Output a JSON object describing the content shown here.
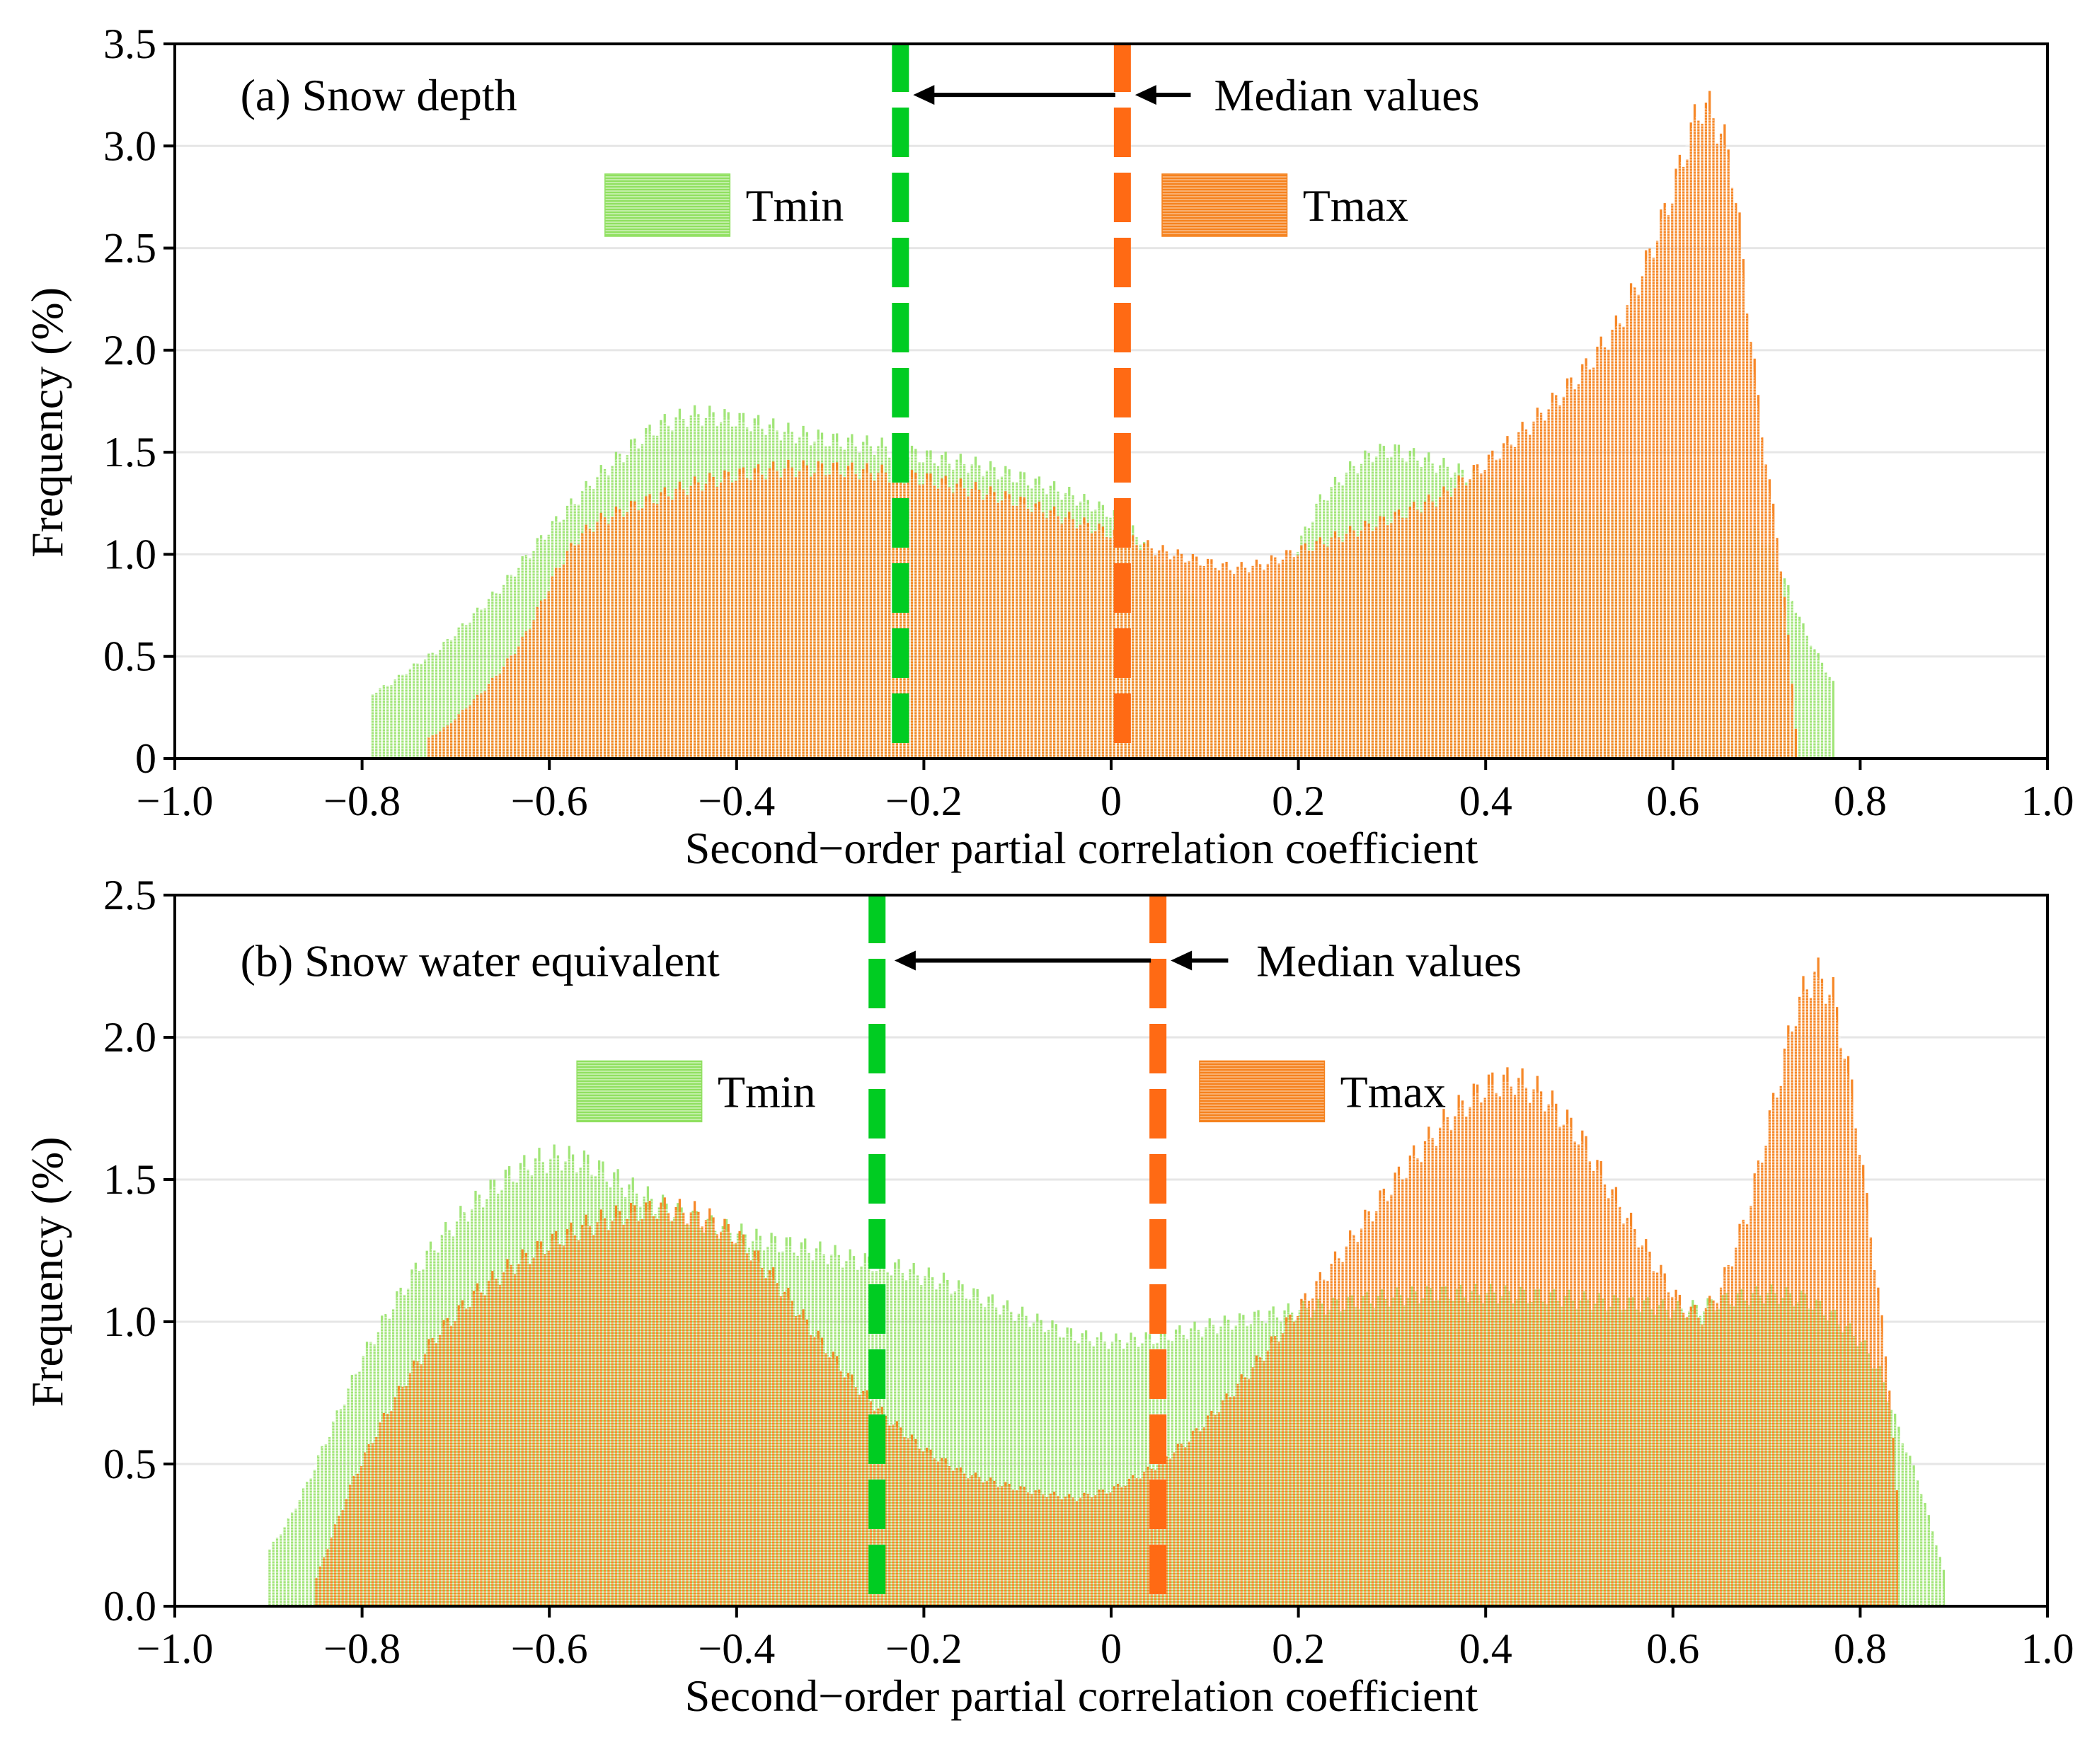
{
  "chart_data": [
    {
      "type": "bar",
      "panel_label": "(a) Snow depth",
      "xlabel": "Second−order partial correlation coefficient",
      "ylabel": "Frequency (%)",
      "xlim": [
        -1.0,
        1.0
      ],
      "ylim": [
        0,
        3.5
      ],
      "xticks": [
        -1.0,
        -0.8,
        -0.6,
        -0.4,
        -0.2,
        0,
        0.2,
        0.4,
        0.6,
        0.8,
        1.0
      ],
      "xtick_labels": [
        "−1.0",
        "−0.8",
        "−0.6",
        "−0.4",
        "−0.2",
        "0",
        "0.2",
        "0.4",
        "0.6",
        "0.8",
        "1.0"
      ],
      "yticks": [
        0,
        0.5,
        1.0,
        1.5,
        2.0,
        2.5,
        3.0,
        3.5
      ],
      "ytick_labels": [
        "0",
        "0.5",
        "1.0",
        "1.5",
        "2.0",
        "2.5",
        "3.0",
        "3.5"
      ],
      "grid": "y",
      "annotation": "Median values",
      "bin_width": 0.004,
      "series": [
        {
          "name": "Tmin",
          "color": "#90e060",
          "range": [
            -0.79,
            0.77
          ],
          "shape": [
            [
              -0.79,
              0.32
            ],
            [
              -0.77,
              0.37
            ],
            [
              -0.75,
              0.44
            ],
            [
              -0.72,
              0.53
            ],
            [
              -0.7,
              0.62
            ],
            [
              -0.68,
              0.71
            ],
            [
              -0.65,
              0.85
            ],
            [
              -0.62,
              1.02
            ],
            [
              -0.6,
              1.13
            ],
            [
              -0.57,
              1.28
            ],
            [
              -0.55,
              1.38
            ],
            [
              -0.52,
              1.5
            ],
            [
              -0.5,
              1.58
            ],
            [
              -0.48,
              1.64
            ],
            [
              -0.45,
              1.68
            ],
            [
              -0.43,
              1.68
            ],
            [
              -0.4,
              1.66
            ],
            [
              -0.37,
              1.63
            ],
            [
              -0.35,
              1.6
            ],
            [
              -0.3,
              1.56
            ],
            [
              -0.25,
              1.53
            ],
            [
              -0.2,
              1.48
            ],
            [
              -0.15,
              1.44
            ],
            [
              -0.1,
              1.38
            ],
            [
              -0.05,
              1.3
            ],
            [
              0.0,
              1.2
            ],
            [
              0.03,
              1.08
            ],
            [
              0.05,
              0.94
            ],
            [
              0.08,
              0.82
            ],
            [
              0.1,
              0.72
            ],
            [
              0.12,
              0.65
            ],
            [
              0.15,
              0.64
            ],
            [
              0.17,
              0.8
            ],
            [
              0.2,
              1.05
            ],
            [
              0.22,
              1.25
            ],
            [
              0.25,
              1.4
            ],
            [
              0.28,
              1.5
            ],
            [
              0.3,
              1.51
            ],
            [
              0.33,
              1.47
            ],
            [
              0.36,
              1.42
            ],
            [
              0.4,
              1.36
            ],
            [
              0.45,
              1.28
            ],
            [
              0.5,
              1.23
            ],
            [
              0.55,
              1.21
            ],
            [
              0.6,
              1.22
            ],
            [
              0.63,
              1.23
            ],
            [
              0.65,
              1.22
            ],
            [
              0.67,
              1.18
            ],
            [
              0.7,
              1.05
            ],
            [
              0.72,
              0.85
            ],
            [
              0.74,
              0.62
            ],
            [
              0.76,
              0.45
            ],
            [
              0.77,
              0.37
            ]
          ]
        },
        {
          "name": "Tmax",
          "color": "#f5821e",
          "range": [
            -0.73,
            0.73
          ],
          "shape": [
            [
              -0.73,
              0.1
            ],
            [
              -0.71,
              0.16
            ],
            [
              -0.69,
              0.25
            ],
            [
              -0.67,
              0.34
            ],
            [
              -0.65,
              0.45
            ],
            [
              -0.63,
              0.58
            ],
            [
              -0.61,
              0.76
            ],
            [
              -0.59,
              0.95
            ],
            [
              -0.57,
              1.08
            ],
            [
              -0.55,
              1.16
            ],
            [
              -0.52,
              1.22
            ],
            [
              -0.48,
              1.29
            ],
            [
              -0.44,
              1.35
            ],
            [
              -0.4,
              1.39
            ],
            [
              -0.35,
              1.42
            ],
            [
              -0.3,
              1.42
            ],
            [
              -0.25,
              1.4
            ],
            [
              -0.2,
              1.37
            ],
            [
              -0.15,
              1.32
            ],
            [
              -0.1,
              1.26
            ],
            [
              -0.05,
              1.18
            ],
            [
              0.0,
              1.1
            ],
            [
              0.05,
              1.02
            ],
            [
              0.1,
              0.96
            ],
            [
              0.13,
              0.93
            ],
            [
              0.16,
              0.95
            ],
            [
              0.2,
              1.02
            ],
            [
              0.25,
              1.1
            ],
            [
              0.3,
              1.18
            ],
            [
              0.35,
              1.28
            ],
            [
              0.4,
              1.45
            ],
            [
              0.45,
              1.65
            ],
            [
              0.5,
              1.88
            ],
            [
              0.54,
              2.12
            ],
            [
              0.57,
              2.42
            ],
            [
              0.6,
              2.8
            ],
            [
              0.62,
              3.1
            ],
            [
              0.63,
              3.2
            ],
            [
              0.64,
              3.17
            ],
            [
              0.66,
              2.95
            ],
            [
              0.67,
              2.6
            ],
            [
              0.68,
              2.15
            ],
            [
              0.69,
              1.75
            ],
            [
              0.7,
              1.4
            ],
            [
              0.71,
              1.1
            ],
            [
              0.72,
              0.7
            ],
            [
              0.73,
              0.15
            ]
          ]
        }
      ],
      "medians": [
        {
          "name": "Tmin",
          "x": -0.225,
          "color": "#00cc22"
        },
        {
          "name": "Tmax",
          "x": 0.012,
          "color": "#ff6a14"
        }
      ]
    },
    {
      "type": "bar",
      "panel_label": "(b) Snow water equivalent",
      "xlabel": "Second−order partial correlation coefficient",
      "ylabel": "Frequency (%)",
      "xlim": [
        -1.0,
        1.0
      ],
      "ylim": [
        0,
        2.5
      ],
      "xticks": [
        -1.0,
        -0.8,
        -0.6,
        -0.4,
        -0.2,
        0,
        0.2,
        0.4,
        0.6,
        0.8,
        1.0
      ],
      "xtick_labels": [
        "−1.0",
        "−0.8",
        "−0.6",
        "−0.4",
        "−0.2",
        "0",
        "0.2",
        "0.4",
        "0.6",
        "0.8",
        "1.0"
      ],
      "yticks": [
        0,
        0.5,
        1.0,
        1.5,
        2.0,
        2.5
      ],
      "ytick_labels": [
        "0.0",
        "0.5",
        "1.0",
        "1.5",
        "2.0",
        "2.5"
      ],
      "grid": "y",
      "annotation": "Median values",
      "bin_width": 0.004,
      "series": [
        {
          "name": "Tmin",
          "color": "#90e060",
          "range": [
            -0.9,
            0.89
          ],
          "shape": [
            [
              -0.9,
              0.2
            ],
            [
              -0.88,
              0.3
            ],
            [
              -0.86,
              0.43
            ],
            [
              -0.84,
              0.58
            ],
            [
              -0.82,
              0.73
            ],
            [
              -0.8,
              0.88
            ],
            [
              -0.77,
              1.05
            ],
            [
              -0.74,
              1.2
            ],
            [
              -0.71,
              1.32
            ],
            [
              -0.68,
              1.42
            ],
            [
              -0.65,
              1.5
            ],
            [
              -0.62,
              1.56
            ],
            [
              -0.59,
              1.58
            ],
            [
              -0.56,
              1.56
            ],
            [
              -0.53,
              1.5
            ],
            [
              -0.5,
              1.44
            ],
            [
              -0.47,
              1.39
            ],
            [
              -0.43,
              1.34
            ],
            [
              -0.38,
              1.29
            ],
            [
              -0.33,
              1.26
            ],
            [
              -0.28,
              1.22
            ],
            [
              -0.23,
              1.19
            ],
            [
              -0.18,
              1.14
            ],
            [
              -0.13,
              1.07
            ],
            [
              -0.08,
              1.0
            ],
            [
              -0.04,
              0.95
            ],
            [
              0.0,
              0.93
            ],
            [
              0.04,
              0.94
            ],
            [
              0.1,
              0.98
            ],
            [
              0.16,
              1.02
            ],
            [
              0.22,
              1.05
            ],
            [
              0.28,
              1.08
            ],
            [
              0.34,
              1.1
            ],
            [
              0.4,
              1.1
            ],
            [
              0.46,
              1.09
            ],
            [
              0.52,
              1.07
            ],
            [
              0.57,
              1.06
            ],
            [
              0.6,
              1.04
            ],
            [
              0.63,
              1.05
            ],
            [
              0.66,
              1.08
            ],
            [
              0.7,
              1.1
            ],
            [
              0.74,
              1.08
            ],
            [
              0.77,
              1.02
            ],
            [
              0.8,
              0.93
            ],
            [
              0.82,
              0.82
            ],
            [
              0.84,
              0.62
            ],
            [
              0.86,
              0.45
            ],
            [
              0.88,
              0.22
            ],
            [
              0.89,
              0.1
            ]
          ]
        },
        {
          "name": "Tmax",
          "color": "#f5821e",
          "range": [
            -0.85,
            0.84
          ],
          "shape": [
            [
              -0.85,
              0.1
            ],
            [
              -0.83,
              0.28
            ],
            [
              -0.81,
              0.45
            ],
            [
              -0.78,
              0.65
            ],
            [
              -0.75,
              0.82
            ],
            [
              -0.72,
              0.96
            ],
            [
              -0.68,
              1.1
            ],
            [
              -0.64,
              1.2
            ],
            [
              -0.6,
              1.28
            ],
            [
              -0.56,
              1.34
            ],
            [
              -0.52,
              1.38
            ],
            [
              -0.48,
              1.4
            ],
            [
              -0.44,
              1.38
            ],
            [
              -0.4,
              1.3
            ],
            [
              -0.36,
              1.15
            ],
            [
              -0.32,
              0.97
            ],
            [
              -0.28,
              0.8
            ],
            [
              -0.24,
              0.66
            ],
            [
              -0.2,
              0.55
            ],
            [
              -0.16,
              0.47
            ],
            [
              -0.12,
              0.43
            ],
            [
              -0.08,
              0.4
            ],
            [
              -0.04,
              0.38
            ],
            [
              0.0,
              0.41
            ],
            [
              0.04,
              0.48
            ],
            [
              0.08,
              0.58
            ],
            [
              0.12,
              0.72
            ],
            [
              0.16,
              0.88
            ],
            [
              0.2,
              1.05
            ],
            [
              0.24,
              1.22
            ],
            [
              0.28,
              1.4
            ],
            [
              0.32,
              1.57
            ],
            [
              0.36,
              1.72
            ],
            [
              0.4,
              1.83
            ],
            [
              0.43,
              1.85
            ],
            [
              0.46,
              1.8
            ],
            [
              0.5,
              1.65
            ],
            [
              0.54,
              1.42
            ],
            [
              0.58,
              1.2
            ],
            [
              0.61,
              1.05
            ],
            [
              0.63,
              1.02
            ],
            [
              0.65,
              1.12
            ],
            [
              0.68,
              1.4
            ],
            [
              0.71,
              1.82
            ],
            [
              0.73,
              2.1
            ],
            [
              0.75,
              2.23
            ],
            [
              0.77,
              2.15
            ],
            [
              0.79,
              1.82
            ],
            [
              0.81,
              1.32
            ],
            [
              0.83,
              0.78
            ],
            [
              0.84,
              0.3
            ]
          ]
        }
      ],
      "medians": [
        {
          "name": "Tmin",
          "x": -0.25,
          "color": "#00cc22"
        },
        {
          "name": "Tmax",
          "x": 0.05,
          "color": "#ff6a14"
        }
      ]
    }
  ]
}
